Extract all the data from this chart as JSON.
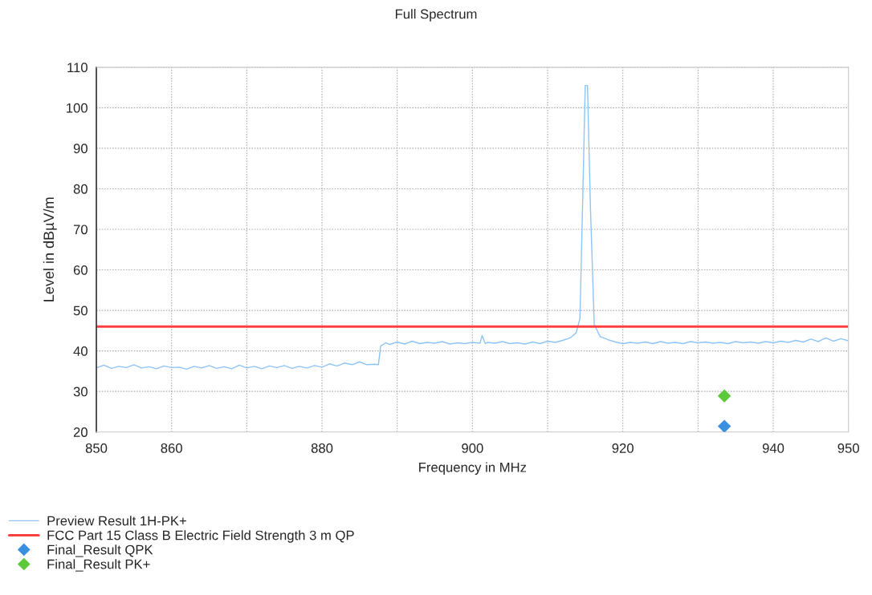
{
  "chart_data": {
    "type": "line",
    "title": "Full Spectrum",
    "xlabel": "Frequency in MHz",
    "ylabel": "Level in dBµV/m",
    "xlim": [
      850,
      950
    ],
    "ylim": [
      20,
      110
    ],
    "xticks": [
      850,
      860,
      {
        "value": 870,
        "label": null
      },
      880,
      {
        "value": 890,
        "label": null
      },
      900,
      {
        "value": 910,
        "label": null
      },
      920,
      {
        "value": 930,
        "label": null
      },
      940,
      950
    ],
    "yticks": [
      20,
      30,
      40,
      50,
      60,
      70,
      80,
      90,
      100,
      110
    ],
    "grid": true,
    "legend": "bottom",
    "series": [
      {
        "name": "Preview Result 1H-PK+",
        "color": "#8ec4f7",
        "x": [
          850,
          851,
          852,
          853,
          854,
          855,
          856,
          857,
          858,
          859,
          860,
          861,
          862,
          863,
          864,
          865,
          866,
          867,
          868,
          869,
          870,
          871,
          872,
          873,
          874,
          875,
          876,
          877,
          878,
          879,
          880,
          881,
          882,
          883,
          884,
          885,
          886,
          887,
          887.5,
          887.8,
          888.5,
          889,
          890,
          891,
          892,
          893,
          894,
          895,
          896,
          897,
          898,
          899,
          900,
          901,
          901.3,
          901.7,
          902,
          903,
          904,
          905,
          906,
          907,
          908,
          909,
          910,
          911,
          912,
          913,
          913.8,
          914.3,
          914.7,
          915,
          915.3,
          915.7,
          916.2,
          917,
          918,
          919,
          920,
          921,
          922,
          923,
          924,
          925,
          926,
          927,
          928,
          929,
          930,
          931,
          932,
          933,
          934,
          935,
          936,
          937,
          938,
          939,
          940,
          941,
          942,
          943,
          944,
          945,
          946,
          947,
          948,
          949,
          950
        ],
        "values": [
          35.8,
          36.5,
          35.7,
          36.2,
          35.9,
          36.6,
          35.8,
          36.1,
          35.6,
          36.3,
          35.9,
          36.0,
          35.5,
          36.2,
          35.8,
          36.4,
          35.7,
          36.1,
          35.6,
          36.5,
          35.8,
          36.2,
          35.6,
          36.3,
          35.9,
          36.4,
          35.7,
          36.2,
          35.8,
          36.4,
          36.0,
          36.8,
          36.3,
          37.0,
          36.6,
          37.3,
          36.6,
          36.7,
          36.6,
          41.2,
          42.0,
          41.6,
          42.2,
          41.7,
          42.4,
          41.8,
          42.1,
          41.9,
          42.3,
          41.7,
          42.0,
          41.8,
          42.1,
          41.9,
          43.8,
          41.8,
          42.1,
          41.9,
          42.3,
          41.8,
          42.0,
          41.7,
          42.2,
          41.8,
          42.4,
          42.1,
          42.6,
          43.2,
          44.5,
          48.0,
          80.0,
          105.5,
          105.5,
          75.0,
          46.5,
          43.5,
          42.8,
          42.2,
          41.8,
          42.1,
          41.9,
          42.2,
          41.8,
          42.3,
          41.9,
          42.1,
          41.8,
          42.3,
          42.0,
          42.2,
          41.9,
          42.1,
          41.8,
          42.3,
          42.0,
          42.2,
          41.9,
          42.3,
          42.0,
          42.4,
          42.1,
          42.6,
          42.2,
          42.9,
          42.3,
          43.2,
          42.4,
          43.0,
          42.5
        ]
      },
      {
        "name": "FCC Part 15 Class B Electric Field Strength 3 m QP",
        "color": "#ff4040",
        "x": [
          850,
          950
        ],
        "values": [
          46,
          46
        ]
      },
      {
        "name": "Final_Result QPK",
        "type": "scatter",
        "marker": "diamond",
        "color": "#3b8fe0",
        "x": [
          933.5
        ],
        "values": [
          21.4
        ]
      },
      {
        "name": "Final_Result PK+",
        "type": "scatter",
        "marker": "diamond",
        "color": "#5cc93a",
        "x": [
          933.5
        ],
        "values": [
          28.9
        ]
      }
    ]
  }
}
